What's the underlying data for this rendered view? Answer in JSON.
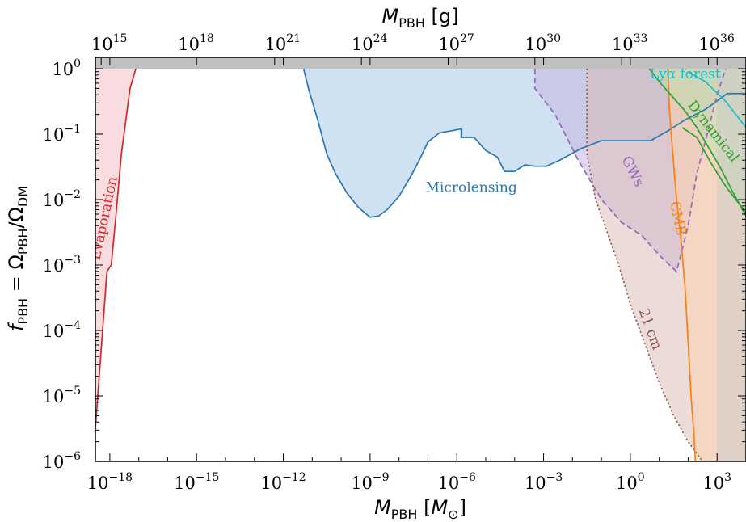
{
  "chart_data": {
    "type": "area",
    "title": "",
    "scale": {
      "x": "log",
      "y": "log",
      "x_top": "log"
    },
    "xlim_log10": [
      -18.5,
      4
    ],
    "ylim_log10": [
      -6,
      0
    ],
    "x_ticks": [
      {
        "base": "10",
        "exp": "−18",
        "log10": -18
      },
      {
        "base": "10",
        "exp": "−15",
        "log10": -15
      },
      {
        "base": "10",
        "exp": "−12",
        "log10": -12
      },
      {
        "base": "10",
        "exp": "−9",
        "log10": -9
      },
      {
        "base": "10",
        "exp": "−6",
        "log10": -6
      },
      {
        "base": "10",
        "exp": "−3",
        "log10": -3
      },
      {
        "base": "10",
        "exp": "0",
        "log10": 0
      },
      {
        "base": "10",
        "exp": "3",
        "log10": 3
      }
    ],
    "y_ticks": [
      {
        "base": "10",
        "exp": "0",
        "log10": 0
      },
      {
        "base": "10",
        "exp": "−1",
        "log10": -1
      },
      {
        "base": "10",
        "exp": "−2",
        "log10": -2
      },
      {
        "base": "10",
        "exp": "−3",
        "log10": -3
      },
      {
        "base": "10",
        "exp": "−4",
        "log10": -4
      },
      {
        "base": "10",
        "exp": "−5",
        "log10": -5
      },
      {
        "base": "10",
        "exp": "−6",
        "log10": -6
      }
    ],
    "top_ticks": [
      {
        "base": "10",
        "exp": "15",
        "log10_msun": -18.3
      },
      {
        "base": "10",
        "exp": "18",
        "log10_msun": -15.3
      },
      {
        "base": "10",
        "exp": "21",
        "log10_msun": -12.3
      },
      {
        "base": "10",
        "exp": "24",
        "log10_msun": -9.3
      },
      {
        "base": "10",
        "exp": "27",
        "log10_msun": -6.3
      },
      {
        "base": "10",
        "exp": "30",
        "log10_msun": -3.3
      },
      {
        "base": "10",
        "exp": "33",
        "log10_msun": -0.3
      },
      {
        "base": "10",
        "exp": "36",
        "log10_msun": 2.7
      }
    ],
    "xlabel": {
      "main": "M",
      "sub": "PBH",
      "unit_open": " [",
      "unit": "M",
      "unit_sub": "⊙",
      "unit_close": "]"
    },
    "xlabel_top": {
      "main": "M",
      "sub": "PBH",
      "unit": " [g]"
    },
    "ylabel": {
      "f": "f",
      "f_sub": "PBH",
      "eq": " = Ω",
      "num_sub": "PBH",
      "slash": "/Ω",
      "den_sub": "DM"
    },
    "series": [
      {
        "name": "Evaporation",
        "color": "#d62728",
        "fill": "#f4c4c9",
        "fill_opacity": 0.6,
        "line": "solid",
        "points_log10": [
          [
            -18.5,
            -5.5
          ],
          [
            -18.35,
            -4.6
          ],
          [
            -18.2,
            -3.7
          ],
          [
            -18.1,
            -3.1
          ],
          [
            -17.95,
            -3.0
          ],
          [
            -17.8,
            -2.3
          ],
          [
            -17.6,
            -1.3
          ],
          [
            -17.3,
            -0.3
          ],
          [
            -17.1,
            0
          ]
        ],
        "fill_region": "left_of_curve"
      },
      {
        "name": "Microlensing",
        "color": "#2878b5",
        "fill": "#a9c9e5",
        "fill_opacity": 0.55,
        "line": "solid",
        "points_log10": [
          [
            -11.5,
            0
          ],
          [
            -11.3,
            0
          ],
          [
            -11.1,
            -0.35
          ],
          [
            -10.8,
            -0.8
          ],
          [
            -10.5,
            -1.3
          ],
          [
            -10.2,
            -1.6
          ],
          [
            -9.8,
            -1.9
          ],
          [
            -9.4,
            -2.12
          ],
          [
            -9.0,
            -2.27
          ],
          [
            -8.7,
            -2.25
          ],
          [
            -8.4,
            -2.15
          ],
          [
            -8.0,
            -1.95
          ],
          [
            -7.6,
            -1.65
          ],
          [
            -7.3,
            -1.4
          ],
          [
            -7.0,
            -1.12
          ],
          [
            -6.6,
            -0.98
          ],
          [
            -6.2,
            -0.95
          ],
          [
            -5.85,
            -0.92
          ],
          [
            -5.85,
            -1.05
          ],
          [
            -5.4,
            -1.05
          ],
          [
            -5.0,
            -1.25
          ],
          [
            -4.6,
            -1.35
          ],
          [
            -4.35,
            -1.57
          ],
          [
            -4.0,
            -1.57
          ],
          [
            -3.65,
            -1.47
          ],
          [
            -3.3,
            -1.49
          ],
          [
            -2.9,
            -1.49
          ],
          [
            -2.45,
            -1.4
          ],
          [
            -1.7,
            -1.22
          ],
          [
            -1.0,
            -1.1
          ],
          [
            -0.5,
            -1.1
          ],
          [
            0.7,
            -1.1
          ],
          [
            1.3,
            -0.95
          ],
          [
            1.9,
            -0.78
          ],
          [
            2.6,
            -0.62
          ],
          [
            3.35,
            -0.38
          ],
          [
            4,
            -0.38
          ]
        ],
        "fill_region": "above_curve"
      },
      {
        "name": "GWs",
        "color": "#9467bd",
        "fill": "#c5b7df",
        "fill_opacity": 0.55,
        "line": "dashed",
        "points_log10": [
          [
            -3.3,
            0
          ],
          [
            -3.3,
            -0.3
          ],
          [
            -2.6,
            -0.7
          ],
          [
            -1.8,
            -1.4
          ],
          [
            -1.0,
            -2.0
          ],
          [
            -0.3,
            -2.35
          ],
          [
            0.4,
            -2.55
          ],
          [
            1.0,
            -2.85
          ],
          [
            1.6,
            -3.1
          ],
          [
            2.0,
            -2.4
          ],
          [
            2.3,
            -1.6
          ],
          [
            2.6,
            -1.1
          ],
          [
            3.0,
            -0.4
          ],
          [
            3.3,
            0
          ]
        ],
        "fill_region": "above_curve"
      },
      {
        "name": "21 cm",
        "color": "#8c564b",
        "fill": "#d7b9b3",
        "fill_opacity": 0.5,
        "line": "dotted",
        "points_log10": [
          [
            -1.5,
            0
          ],
          [
            -1.5,
            -1.3
          ],
          [
            -1.2,
            -2.0
          ],
          [
            -0.8,
            -2.5
          ],
          [
            -0.4,
            -3.0
          ],
          [
            0.0,
            -3.6
          ],
          [
            0.5,
            -4.2
          ],
          [
            1.0,
            -4.8
          ],
          [
            1.5,
            -5.3
          ],
          [
            2.0,
            -5.7
          ],
          [
            2.5,
            -6.0
          ]
        ],
        "fill_region": "right_of_curve"
      },
      {
        "name": "CMB",
        "color": "#ff7f0e",
        "fill": "#fbd2ae",
        "fill_opacity": 0.55,
        "line": "solid",
        "points_log10": [
          [
            1.3,
            0
          ],
          [
            1.35,
            -0.6
          ],
          [
            1.45,
            -1.2
          ],
          [
            1.6,
            -2.0
          ],
          [
            1.75,
            -2.6
          ],
          [
            1.9,
            -3.4
          ],
          [
            2.0,
            -4.2
          ],
          [
            2.1,
            -5.0
          ],
          [
            2.2,
            -5.6
          ],
          [
            2.25,
            -6.0
          ]
        ],
        "fill_region": "right_of_curve"
      },
      {
        "name": "Lyα forest",
        "color": "#17becf",
        "fill": "#a6e3ea",
        "fill_opacity": 0.4,
        "line": "solid",
        "points_log10": [
          [
            2.0,
            -0.05
          ],
          [
            2.6,
            -0.2
          ],
          [
            3.3,
            -0.5
          ],
          [
            4,
            -0.9
          ]
        ],
        "fill_region": "none"
      },
      {
        "name": "Dynamical",
        "color": "#2ca02c",
        "fill": "#b7dfb0",
        "fill_opacity": 0.5,
        "line": "solid",
        "points_log10": [
          [
            0.65,
            0
          ],
          [
            1.1,
            -0.25
          ],
          [
            1.5,
            -0.45
          ],
          [
            1.9,
            -0.65
          ],
          [
            2.3,
            -0.9
          ],
          [
            2.7,
            -1.2
          ],
          [
            3.1,
            -1.5
          ],
          [
            3.5,
            -1.85
          ],
          [
            4,
            -2.25
          ]
        ],
        "points2_log10": [
          [
            1.8,
            -0.9
          ],
          [
            2.3,
            -1.05
          ],
          [
            2.8,
            -1.45
          ],
          [
            3.3,
            -1.8
          ],
          [
            4,
            -2.2
          ]
        ],
        "fill_region": "right_of_curve"
      },
      {
        "name": "",
        "color": "#999999",
        "fill": "#cccccc",
        "fill_opacity": 0.5,
        "line": "none",
        "points_log10": [
          [
            3,
            -6
          ],
          [
            3,
            0
          ]
        ],
        "fill_region": "right_of_curve"
      }
    ],
    "annotations": [
      {
        "text": "Evaporation",
        "color": "#d62728",
        "x_log10": -18.05,
        "y_log10": -2.3,
        "rotate": -78
      },
      {
        "text": "Microlensing",
        "color": "#2878b5",
        "x_log10": -5.5,
        "y_log10": -1.88,
        "rotate": 0
      },
      {
        "text": "GWs",
        "color": "#9467bd",
        "x_log10": -0.05,
        "y_log10": -1.6,
        "rotate": 63
      },
      {
        "text": "CMB",
        "color": "#ff7f0e",
        "x_log10": 1.5,
        "y_log10": -2.3,
        "rotate": 78
      },
      {
        "text": "21 cm",
        "color": "#8c564b",
        "x_log10": 0.55,
        "y_log10": -4.0,
        "rotate": 70
      },
      {
        "text": "Lyα forest",
        "color": "#17becf",
        "x_log10": 1.9,
        "y_log10": -0.15,
        "rotate": 0
      },
      {
        "text": "Dynamical",
        "color": "#2ca02c",
        "x_log10": 2.75,
        "y_log10": -1.0,
        "rotate": 52
      }
    ]
  }
}
